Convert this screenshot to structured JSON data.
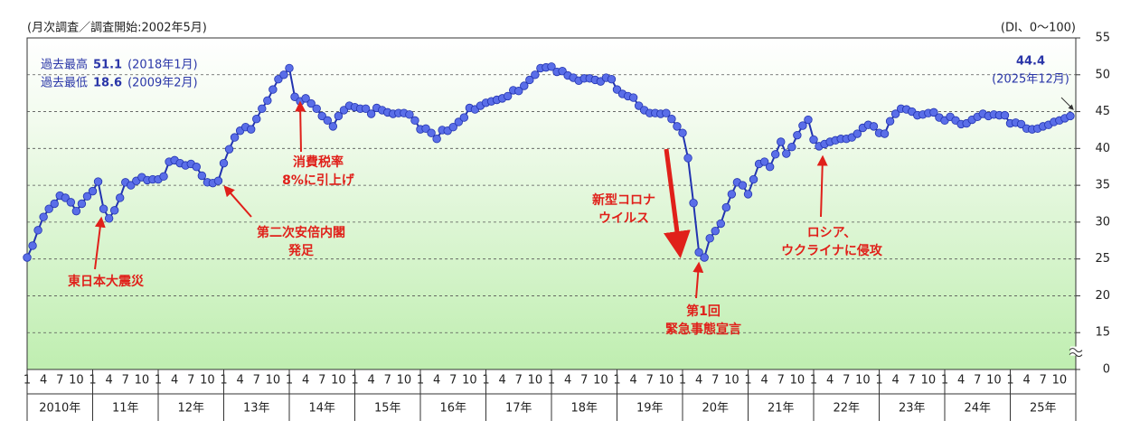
{
  "chart_data": {
    "type": "line",
    "header_left": "(月次調査／調査開始:2002年5月)",
    "header_right": "(DI、0～100)",
    "categories": [
      "1",
      null,
      null,
      "4",
      null,
      null,
      "7",
      null,
      null,
      "10",
      null,
      null,
      "1",
      null,
      null,
      "4",
      null,
      null,
      "7",
      null,
      null,
      "10",
      null,
      null,
      "1",
      null,
      null,
      "4",
      null,
      null,
      "7",
      null,
      null,
      "10",
      null,
      null,
      "1",
      null,
      null,
      "4",
      null,
      null,
      "7",
      null,
      null,
      "10",
      null,
      null,
      "1",
      null,
      null,
      "4",
      null,
      null,
      "7",
      null,
      null,
      "10",
      null,
      null,
      "1",
      null,
      null,
      "4",
      null,
      null,
      "7",
      null,
      null,
      "10",
      null,
      null,
      "1",
      null,
      null,
      "4",
      null,
      null,
      "7",
      null,
      null,
      "10",
      null,
      null,
      "1",
      null,
      null,
      "4",
      null,
      null,
      "7",
      null,
      null,
      "10",
      null,
      null,
      "1",
      null,
      null,
      "4",
      null,
      null,
      "7",
      null,
      null,
      "10",
      null,
      null,
      "1",
      null,
      null,
      "4",
      null,
      null,
      "7",
      null,
      null,
      "10",
      null,
      null,
      "1",
      null,
      null,
      "4",
      null,
      null,
      "7",
      null,
      null,
      "10",
      null,
      null,
      "1",
      null,
      null,
      "4",
      null,
      null,
      "7",
      null,
      null,
      "10",
      null,
      null,
      "1",
      null,
      null,
      "4",
      null,
      null,
      "7",
      null,
      null,
      "10",
      null,
      null,
      "1",
      null,
      null,
      "4",
      null,
      null,
      "7",
      null,
      null,
      "10",
      null,
      null,
      "1",
      null,
      null,
      "4",
      null,
      null,
      "7",
      null,
      null,
      "10",
      null,
      null,
      "1",
      null,
      null,
      "4",
      null,
      null,
      "7",
      null,
      null,
      "10",
      null,
      null
    ],
    "x_groups": [
      "2010年",
      "11年",
      "12年",
      "13年",
      "14年",
      "15年",
      "16年",
      "17年",
      "18年",
      "19年",
      "20年",
      "21年",
      "22年",
      "23年",
      "24年",
      "25年"
    ],
    "series": [
      {
        "color": "#2233b0",
        "marker_color": "#5a6ee8",
        "values": [
          25.2,
          26.8,
          28.9,
          30.7,
          31.8,
          32.5,
          33.6,
          33.3,
          32.7,
          31.5,
          32.5,
          33.5,
          34.2,
          35.5,
          31.8,
          30.5,
          31.6,
          33.3,
          35.4,
          35.0,
          35.6,
          36.1,
          35.7,
          35.8,
          35.8,
          36.2,
          38.2,
          38.4,
          38.0,
          37.7,
          37.9,
          37.5,
          36.3,
          35.4,
          35.3,
          35.6,
          38.0,
          39.9,
          41.5,
          42.4,
          42.9,
          42.6,
          44.0,
          45.4,
          46.5,
          48.0,
          49.4,
          50.0,
          50.9,
          47.0,
          46.4,
          46.8,
          46.1,
          45.4,
          44.4,
          43.8,
          43.0,
          44.4,
          45.2,
          45.8,
          45.6,
          45.4,
          45.4,
          44.7,
          45.5,
          45.2,
          44.9,
          44.7,
          44.8,
          44.8,
          44.6,
          43.8,
          42.6,
          42.7,
          42.1,
          41.3,
          42.5,
          42.4,
          42.9,
          43.6,
          44.2,
          45.5,
          45.3,
          45.8,
          46.2,
          46.4,
          46.6,
          46.8,
          47.1,
          47.9,
          47.8,
          48.5,
          49.3,
          50.0,
          50.9,
          51.0,
          51.1,
          50.4,
          50.5,
          49.9,
          49.6,
          49.2,
          49.5,
          49.5,
          49.3,
          49.1,
          49.6,
          49.4,
          48.0,
          47.4,
          47.1,
          46.9,
          45.8,
          45.2,
          44.8,
          44.8,
          44.7,
          44.8,
          44.0,
          43.0,
          42.1,
          38.7,
          32.6,
          25.9,
          25.2,
          27.8,
          28.8,
          29.8,
          32.0,
          33.8,
          35.4,
          35.0,
          33.8,
          35.8,
          37.9,
          38.2,
          37.5,
          39.2,
          40.9,
          39.3,
          40.2,
          41.8,
          43.1,
          43.9,
          41.2,
          40.3,
          40.6,
          40.9,
          41.1,
          41.3,
          41.3,
          41.5,
          42.0,
          42.8,
          43.2,
          43.0,
          42.1,
          42.0,
          43.7,
          44.7,
          45.4,
          45.3,
          45.0,
          44.5,
          44.6,
          44.8,
          44.9,
          44.2,
          43.8,
          44.3,
          43.8,
          43.3,
          43.4,
          43.9,
          44.3,
          44.7,
          44.4,
          44.6,
          44.5,
          44.5,
          43.4,
          43.5,
          43.3,
          42.7,
          42.6,
          42.7,
          43.0,
          43.2,
          43.6,
          43.8,
          44.1,
          44.4
        ]
      }
    ],
    "ylim": [
      10,
      55
    ],
    "yticks": [
      {
        "value": 10,
        "label": "0"
      },
      15,
      20,
      25,
      30,
      35,
      40,
      45,
      50,
      55
    ],
    "axis_break": true,
    "grid": true,
    "records": [
      {
        "label": "過去最高",
        "value": 51.1,
        "date": "(2018年1月)"
      },
      {
        "label": "過去最低",
        "value": 18.6,
        "date": "(2009年2月)"
      }
    ],
    "latest_date": "(2025年12月)",
    "annotations": [
      {
        "lines": [
          "東日本大震災"
        ]
      },
      {
        "lines": [
          "消費税率",
          "8%に引上げ"
        ]
      },
      {
        "lines": [
          "第二次安倍内閣",
          "発足"
        ]
      },
      {
        "lines": [
          "新型コロナ",
          "ウイルス"
        ]
      },
      {
        "lines": [
          "第1回",
          "緊急事態宣言"
        ]
      },
      {
        "lines": [
          "ロシア、",
          "ウクライナに侵攻"
        ]
      }
    ]
  }
}
